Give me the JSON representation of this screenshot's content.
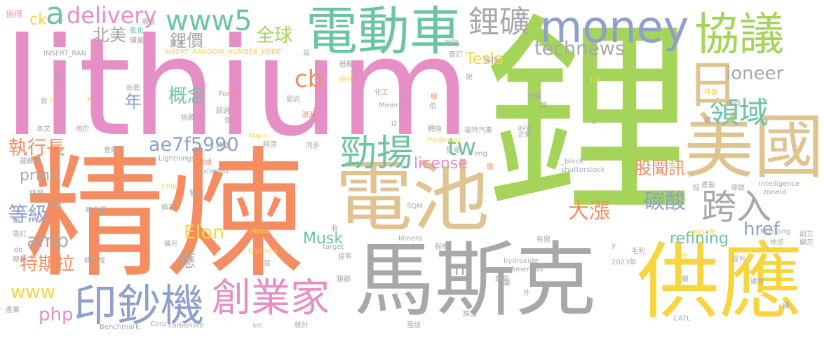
{
  "words": [
    {
      "text": "鋰",
      "color": "#a5d45a"
    },
    {
      "text": "lithium",
      "color": "#e68ec6"
    },
    {
      "text": "精煉",
      "color": "#f58d62"
    },
    {
      "text": "馬斯克",
      "color": "#a8a8a8"
    },
    {
      "text": "供應",
      "color": "#f7d541"
    },
    {
      "text": "電池",
      "color": "#dfc491"
    },
    {
      "text": "電動車",
      "color": "#6cc4a3"
    },
    {
      "text": "美國",
      "color": "#dfc491"
    },
    {
      "text": "協議",
      "color": "#a5d45a"
    },
    {
      "text": "money",
      "color": "#8da0cb"
    },
    {
      "text": "印鈔機",
      "color": "#8da0cb"
    },
    {
      "text": "創業家",
      "color": "#e68ec6"
    },
    {
      "text": "勁揚",
      "color": "#6cc4a3"
    },
    {
      "text": "跨入",
      "color": "#a8a8a8"
    },
    {
      "text": "領域",
      "color": "#6cc4a3"
    },
    {
      "text": "日",
      "color": "#dfc491"
    },
    {
      "text": "鋰礦",
      "color": "#a8a8a8"
    },
    {
      "text": "www5",
      "color": "#6cc4a3"
    },
    {
      "text": "delivery",
      "color": "#e68ec6"
    },
    {
      "text": "a",
      "color": "#6cc4a3"
    },
    {
      "text": "technews",
      "color": "#a8a8a8"
    },
    {
      "text": "ioneer",
      "color": "#a8a8a8"
    },
    {
      "text": "大漲",
      "color": "#f58d62"
    },
    {
      "text": "碳酸",
      "color": "#8da0cb"
    },
    {
      "text": "股聞訊",
      "color": "#f58d62"
    },
    {
      "text": "href",
      "color": "#8da0cb"
    },
    {
      "text": "refining",
      "color": "#6cc4a3"
    },
    {
      "text": "鋰價",
      "color": "#a8a8a8"
    },
    {
      "text": "全球",
      "color": "#a5d45a"
    },
    {
      "text": "北美",
      "color": "#a8a8a8"
    },
    {
      "text": "cb",
      "color": "#f58d62"
    },
    {
      "text": "Tesla",
      "color": "#f7d541"
    },
    {
      "text": "概念",
      "color": "#6cc4a3"
    },
    {
      "text": "年",
      "color": "#8da0cb"
    },
    {
      "text": "執行長",
      "color": "#f58d62"
    },
    {
      "text": "ae7f5990",
      "color": "#8da0cb"
    },
    {
      "text": "tw",
      "color": "#6cc4a3"
    },
    {
      "text": "license",
      "color": "#e68ec6"
    },
    {
      "text": "print",
      "color": "#a8a8a8"
    },
    {
      "text": "等級",
      "color": "#8da0cb"
    },
    {
      "text": "amp",
      "color": "#a8a8a8"
    },
    {
      "text": "www",
      "color": "#f7d541"
    },
    {
      "text": "php",
      "color": "#e68ec6"
    },
    {
      "text": "特斯拉",
      "color": "#f58d62"
    },
    {
      "text": "Elon",
      "color": "#f7d541"
    },
    {
      "text": "Musk",
      "color": "#6cc4a3"
    },
    {
      "text": "應",
      "color": "#a8a8a8"
    },
    {
      "text": "n",
      "color": "#a8a8a8"
    },
    {
      "text": "ck",
      "color": "#f7d541"
    },
    {
      "text": "值得",
      "color": "#e68ec6"
    },
    {
      "text": "需求",
      "color": "#a8a8a8"
    },
    {
      "text": "氧化",
      "color": "#6cc4a3"
    },
    {
      "text": "礦業",
      "color": "#a8a8a8"
    },
    {
      "text": "INSERT_RAN",
      "color": "#a8a8a8"
    },
    {
      "text": "來源",
      "color": "#a8a8a8"
    },
    {
      "text": "INSERT_RANDOM_NUMBER_HERE'",
      "color": "#f7d541"
    },
    {
      "text": "高",
      "color": "#a8a8a8"
    },
    {
      "text": "鼓勵",
      "color": "#a8a8a8"
    },
    {
      "text": "時代",
      "color": "#f7d541"
    },
    {
      "text": "碳酸",
      "color": "#a8a8a8"
    },
    {
      "text": "說",
      "color": "#a8a8a8"
    },
    {
      "text": "簽訂",
      "color": "#a8a8a8"
    },
    {
      "text": "福特",
      "color": "#a8a8a8"
    },
    {
      "text": "1月",
      "color": "#f7d541"
    },
    {
      "text": "新聞",
      "color": "#a8a8a8"
    },
    {
      "text": "夠",
      "color": "#a8a8a8"
    },
    {
      "text": "S",
      "color": "#f7d541"
    },
    {
      "text": "台",
      "color": "#8da0cb"
    },
    {
      "text": "Ford",
      "color": "#f58d62"
    },
    {
      "text": "閱訊",
      "color": "#a8a8a8"
    },
    {
      "text": "化工",
      "color": "#a8a8a8"
    },
    {
      "text": "極",
      "color": "#f58d62"
    },
    {
      "text": "財報",
      "color": "#a8a8a8"
    },
    {
      "text": "呼籲",
      "color": "#f7d541"
    },
    {
      "text": "礦商",
      "color": "#a8a8a8"
    },
    {
      "text": "F",
      "color": "#f7d541"
    },
    {
      "text": "Mineral",
      "color": "#a8a8a8"
    },
    {
      "text": "佰",
      "color": "#a8a8a8"
    },
    {
      "text": "輪",
      "color": "#a8a8a8"
    },
    {
      "text": "挑戰",
      "color": "#a8a8a8"
    },
    {
      "text": "超過",
      "color": "#a8a8a8"
    },
    {
      "text": "澳洲",
      "color": "#f58d62"
    },
    {
      "text": "本文",
      "color": "#a8a8a8"
    },
    {
      "text": "用於",
      "color": "#e68ec6"
    },
    {
      "text": "氫",
      "color": "#a8a8a8"
    },
    {
      "text": "Q",
      "color": "#8da0cb"
    },
    {
      "text": "轉換",
      "color": "#a8a8a8"
    },
    {
      "text": "福特汽車",
      "color": "#a8a8a8"
    },
    {
      "text": "avw",
      "color": "#a8a8a8"
    },
    {
      "text": "企業",
      "color": "#a8a8a8"
    },
    {
      "text": "E",
      "color": "#a8a8a8"
    },
    {
      "text": "鐵",
      "color": "#a8a8a8"
    },
    {
      "text": "Mach",
      "color": "#f7d541"
    },
    {
      "text": "會議",
      "color": "#a8a8a8"
    },
    {
      "text": "轉載",
      "color": "#a8a8a8"
    },
    {
      "text": "純度",
      "color": "#a8a8a8"
    },
    {
      "text": "同步",
      "color": "#a8a8a8"
    },
    {
      "text": "Piedmont",
      "color": "#f7d541"
    },
    {
      "text": "狂潮",
      "color": "#a8a8a8"
    },
    {
      "text": "img",
      "color": "#a8a8a8"
    },
    {
      "text": "蘊藏量",
      "color": "#a8a8a8"
    },
    {
      "text": "Lightnings",
      "color": "#a8a8a8"
    },
    {
      "text": "數據",
      "color": "#f58d62"
    },
    {
      "text": "Sociedad",
      "color": "#a8a8a8"
    },
    {
      "text": "盤",
      "color": "#f58d62"
    },
    {
      "text": "_blank'",
      "color": "#a8a8a8"
    },
    {
      "text": "shutterstock",
      "color": "#a8a8a8"
    },
    {
      "text": "Chile",
      "color": "#f7d541"
    },
    {
      "text": "終場",
      "color": "#a8a8a8"
    },
    {
      "text": "智利",
      "color": "#a8a8a8"
    },
    {
      "text": "產能",
      "color": "#a8a8a8"
    },
    {
      "text": "導致",
      "color": "#a8a8a8"
    },
    {
      "text": "Intelligence",
      "color": "#a8a8a8"
    },
    {
      "text": "zoneid",
      "color": "#a8a8a8"
    },
    {
      "text": "捉",
      "color": "#a8a8a8"
    },
    {
      "text": "美元",
      "color": "#a8a8a8"
    },
    {
      "text": "概念股",
      "color": "#a8a8a8"
    },
    {
      "text": "磷高",
      "color": "#a8a8a8"
    },
    {
      "text": "SQM",
      "color": "#a8a8a8"
    },
    {
      "text": "Motor",
      "color": "#f7d541"
    },
    {
      "text": "收",
      "color": "#a8a8a8"
    },
    {
      "text": "2024年",
      "color": "#f7d541"
    },
    {
      "text": "Mustang",
      "color": "#a8a8a8"
    },
    {
      "text": "創立",
      "color": "#a8a8a8"
    },
    {
      "text": "顯示",
      "color": "#a8a8a8"
    },
    {
      "text": "簽訂",
      "color": "#a8a8a8"
    },
    {
      "text": "圖",
      "color": "#a8a8a8"
    },
    {
      "text": "de",
      "color": "#8da0cb"
    },
    {
      "text": "飆升",
      "color": "#a8a8a8"
    },
    {
      "text": "target",
      "color": "#a8a8a8"
    },
    {
      "text": "Minera",
      "color": "#a8a8a8"
    },
    {
      "text": "程欄",
      "color": "#a8a8a8"
    },
    {
      "text": "有限",
      "color": "#a8a8a8"
    },
    {
      "text": "y",
      "color": "#e68ec6"
    },
    {
      "text": "DJ",
      "color": "#f7d541"
    },
    {
      "text": "地步",
      "color": "#a8a8a8"
    },
    {
      "text": "毛利",
      "color": "#a8a8a8"
    },
    {
      "text": "提升",
      "color": "#a8a8a8"
    },
    {
      "text": "理業",
      "color": "#a8a8a8"
    },
    {
      "text": "精煉成",
      "color": "#a8a8a8"
    },
    {
      "text": "Quimica",
      "color": "#f7d541"
    },
    {
      "text": "首",
      "color": "#a8a8a8"
    },
    {
      "text": "提有",
      "color": "#a8a8a8"
    },
    {
      "text": "hydroxide",
      "color": "#a8a8a8"
    },
    {
      "text": "Americas",
      "color": "#a8a8a8"
    },
    {
      "text": "2023年",
      "color": "#a8a8a8"
    },
    {
      "text": "嚴",
      "color": "#a8a8a8"
    },
    {
      "text": "稀有",
      "color": "#a8a8a8"
    },
    {
      "text": "鉅額",
      "color": "#a8a8a8"
    },
    {
      "text": "跳高",
      "color": "#a8a8a8"
    },
    {
      "text": "外",
      "color": "#a8a8a8"
    },
    {
      "text": "業",
      "color": "#a8a8a8"
    },
    {
      "text": "礦",
      "color": "#a8a8a8"
    },
    {
      "text": "推出",
      "color": "#a8a8a8"
    },
    {
      "text": "產業",
      "color": "#a8a8a8"
    },
    {
      "text": "Benchmark",
      "color": "#a8a8a8"
    },
    {
      "text": "Corp",
      "color": "#a8a8a8"
    },
    {
      "text": "carbonate",
      "color": "#a8a8a8"
    },
    {
      "text": "src",
      "color": "#a8a8a8"
    },
    {
      "text": "統計",
      "color": "#a8a8a8"
    },
    {
      "text": "電話",
      "color": "#a8a8a8"
    },
    {
      "text": "CATL",
      "color": "#a8a8a8"
    }
  ]
}
